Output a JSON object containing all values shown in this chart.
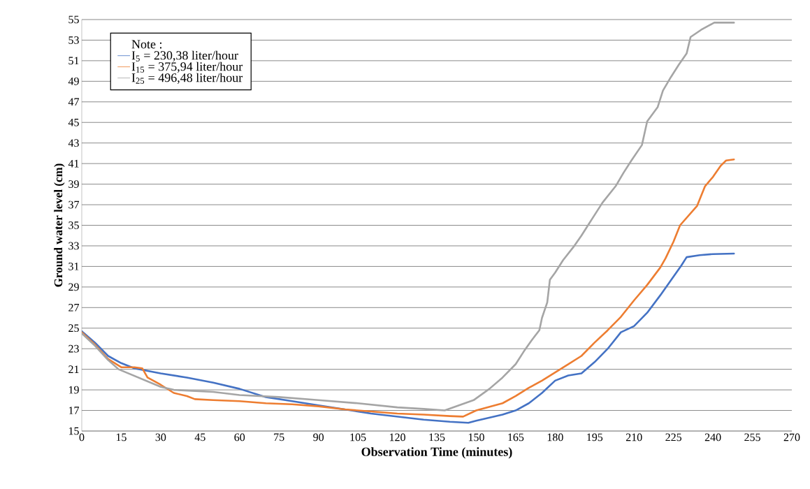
{
  "chart_data": {
    "type": "line",
    "xlabel": "Observation Time (minutes)",
    "ylabel": "Ground water level (cm)",
    "legend_title": "Note :",
    "legend": "top left",
    "grid": "y",
    "xlim": [
      0,
      270
    ],
    "xticks": [
      0,
      15,
      30,
      45,
      60,
      75,
      90,
      105,
      120,
      135,
      150,
      165,
      180,
      195,
      210,
      225,
      240,
      255,
      270
    ],
    "ylim": [
      15,
      55
    ],
    "yticks": [
      15,
      17,
      19,
      21,
      23,
      25,
      27,
      29,
      31,
      33,
      35,
      37,
      39,
      41,
      43,
      45,
      47,
      49,
      51,
      53,
      55
    ],
    "series": [
      {
        "name": "I$_{5}$ = 230,38 liter/hour",
        "color": "#4472c4",
        "x": [
          0,
          5,
          10,
          15,
          20,
          30,
          40,
          50,
          60,
          70,
          80,
          90,
          100,
          110,
          120,
          130,
          140,
          147,
          150,
          155,
          160,
          165,
          170,
          175,
          180,
          185,
          190,
          195,
          200,
          205,
          210,
          215,
          220,
          225,
          228,
          230,
          235,
          240,
          248
        ],
        "values": [
          24.7,
          23.6,
          22.3,
          21.6,
          21.1,
          20.6,
          20.2,
          19.7,
          19.1,
          18.3,
          17.9,
          17.5,
          17.1,
          16.7,
          16.4,
          16.1,
          15.9,
          15.8,
          16.0,
          16.3,
          16.6,
          17.0,
          17.7,
          18.7,
          19.9,
          20.4,
          20.6,
          21.7,
          23.0,
          24.6,
          25.2,
          26.5,
          28.2,
          30.0,
          31.1,
          31.9,
          32.1,
          32.2,
          32.25
        ]
      },
      {
        "name": "I$_{15}$ = 375,94 liter/hour",
        "color": "#ed7d31",
        "x": [
          0,
          5,
          10,
          15,
          20,
          23,
          25,
          30,
          35,
          40,
          43,
          50,
          60,
          70,
          80,
          90,
          100,
          110,
          120,
          130,
          140,
          145,
          150,
          160,
          165,
          170,
          175,
          180,
          185,
          190,
          195,
          200,
          205,
          210,
          215,
          220,
          222,
          225,
          227.5,
          234,
          237,
          240,
          243,
          245,
          248
        ],
        "values": [
          24.6,
          23.4,
          22.0,
          21.2,
          21.2,
          21.1,
          20.2,
          19.5,
          18.7,
          18.4,
          18.1,
          18.0,
          17.9,
          17.7,
          17.6,
          17.4,
          17.1,
          16.9,
          16.7,
          16.6,
          16.45,
          16.4,
          17.0,
          17.7,
          18.4,
          19.2,
          19.9,
          20.7,
          21.5,
          22.3,
          23.6,
          24.8,
          26.1,
          27.7,
          29.2,
          30.9,
          31.8,
          33.4,
          35.0,
          36.9,
          38.8,
          39.7,
          40.8,
          41.3,
          41.4
        ]
      },
      {
        "name": "I$_{25}$ = 496,48 liter/hour",
        "color": "#a5a5a5",
        "x": [
          0,
          5,
          10,
          14,
          30,
          35,
          50,
          60,
          75,
          90,
          105,
          120,
          130,
          138,
          149,
          155,
          160,
          165,
          168,
          171,
          174,
          175,
          177,
          178,
          180,
          183,
          187,
          190,
          193,
          194,
          198,
          203,
          206,
          209,
          213,
          215,
          219,
          221,
          224,
          227,
          230,
          231.5,
          235.5,
          240.5,
          248
        ],
        "values": [
          24.5,
          23.3,
          21.9,
          21.0,
          19.3,
          19.0,
          18.8,
          18.5,
          18.3,
          18.0,
          17.7,
          17.3,
          17.15,
          17.0,
          18.0,
          19.1,
          20.2,
          21.5,
          22.7,
          23.8,
          24.8,
          26.0,
          27.5,
          29.7,
          30.4,
          31.6,
          32.9,
          34.0,
          35.2,
          35.6,
          37.2,
          38.8,
          40.1,
          41.3,
          42.8,
          45.1,
          46.5,
          48.1,
          49.4,
          50.6,
          51.7,
          53.3,
          54.0,
          54.7,
          54.7
        ]
      }
    ]
  }
}
